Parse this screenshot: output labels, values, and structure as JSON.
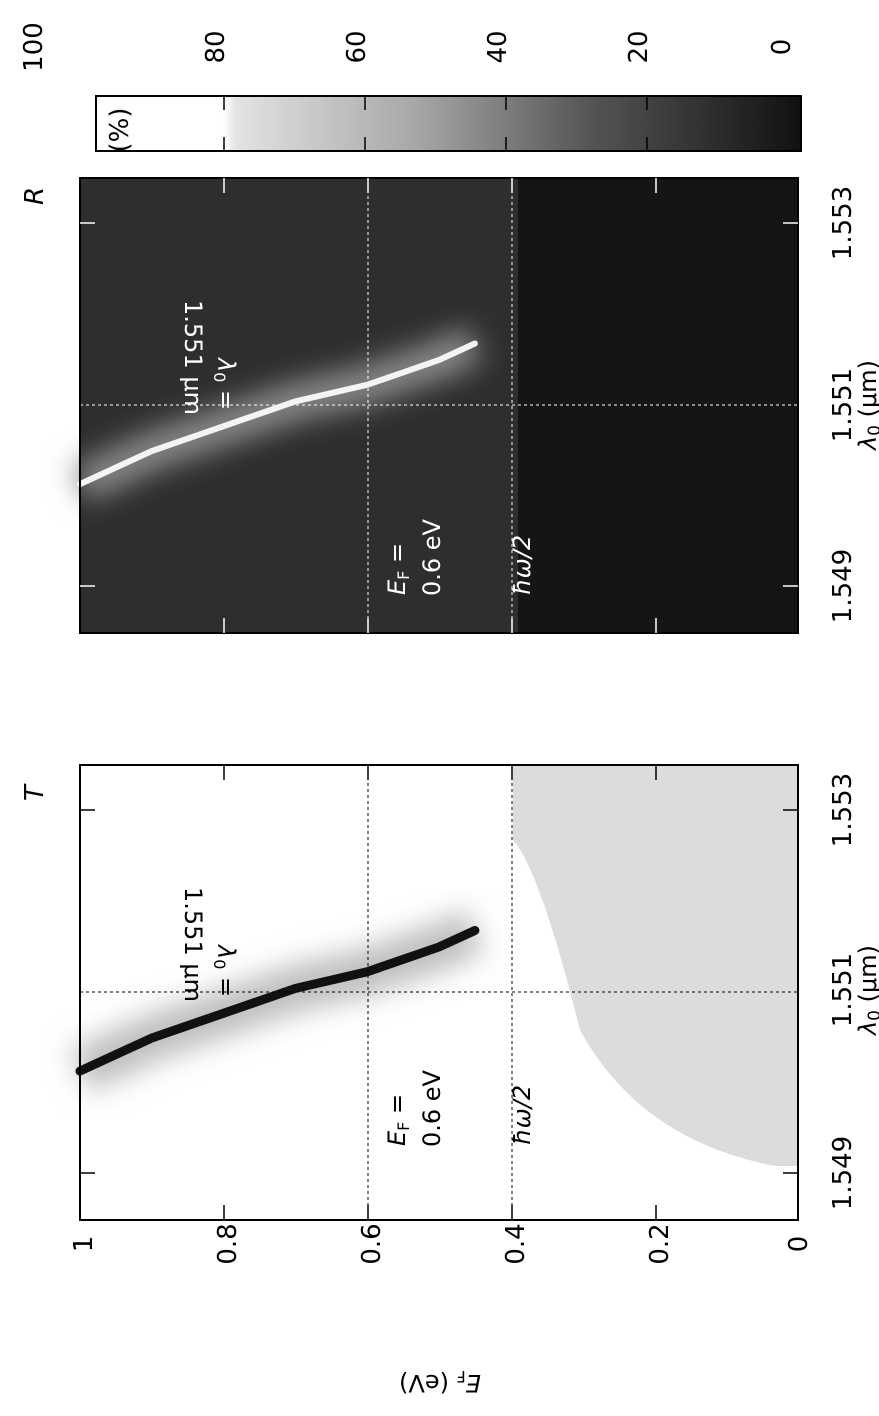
{
  "chart_data": [
    {
      "type": "heatmap",
      "title": "T",
      "xlabel": "λ0 (μm)",
      "ylabel": "EF (eV)",
      "xlim": [
        1.548,
        1.5535
      ],
      "ylim": [
        0,
        1
      ],
      "xticks": [
        "1.549",
        "1.551",
        "1.553"
      ],
      "yticks": [
        "0",
        "0.2",
        "0.4",
        "0.6",
        "0.8",
        "1"
      ],
      "grid": true,
      "threshold_label": "ħω/2",
      "threshold_EF": 0.4,
      "marked_point": {
        "lambda0": 1.551,
        "EF": 0.6
      },
      "annotations": {
        "ef_name": "E",
        "ef_sub": "F",
        "ef_eq": " =",
        "ef_value": "0.6 eV",
        "lambda_name": "λ",
        "lambda_sub": "0",
        "lambda_eq": " =",
        "lambda_value": "1.551 μm"
      },
      "resonance_curve": [
        {
          "EF": 1.0,
          "lambda0": 1.5498
        },
        {
          "EF": 0.9,
          "lambda0": 1.5502
        },
        {
          "EF": 0.8,
          "lambda0": 1.5505
        },
        {
          "EF": 0.7,
          "lambda0": 1.5508
        },
        {
          "EF": 0.6,
          "lambda0": 1.551
        },
        {
          "EF": 0.55,
          "lambda0": 1.55115
        },
        {
          "EF": 0.5,
          "lambda0": 1.5513
        },
        {
          "EF": 0.45,
          "lambda0": 1.5515
        }
      ]
    },
    {
      "type": "heatmap",
      "title": "R",
      "xlabel": "λ0 (μm)",
      "xlim": [
        1.548,
        1.5535
      ],
      "ylim": [
        0,
        1
      ],
      "xticks": [
        "1.549",
        "1.551",
        "1.553"
      ],
      "grid": true,
      "threshold_label": "ħω/2",
      "threshold_EF": 0.4,
      "marked_point": {
        "lambda0": 1.551,
        "EF": 0.6
      },
      "annotations": {
        "ef_name": "E",
        "ef_sub": "F",
        "ef_eq": " =",
        "ef_value": "0.6 eV",
        "lambda_name": "λ",
        "lambda_sub": "0",
        "lambda_eq": " =",
        "lambda_value": "1.551 μm"
      },
      "colorbar": {
        "label": "(%)",
        "ticks": [
          "0",
          "20",
          "40",
          "60",
          "80",
          "100"
        ],
        "range": [
          0,
          100
        ]
      }
    }
  ],
  "colors": {
    "background": "#ffffff",
    "dark": "#151515",
    "axis": "#000000",
    "grid_on_dark": "#ffffff",
    "grid_on_light": "#000000"
  }
}
